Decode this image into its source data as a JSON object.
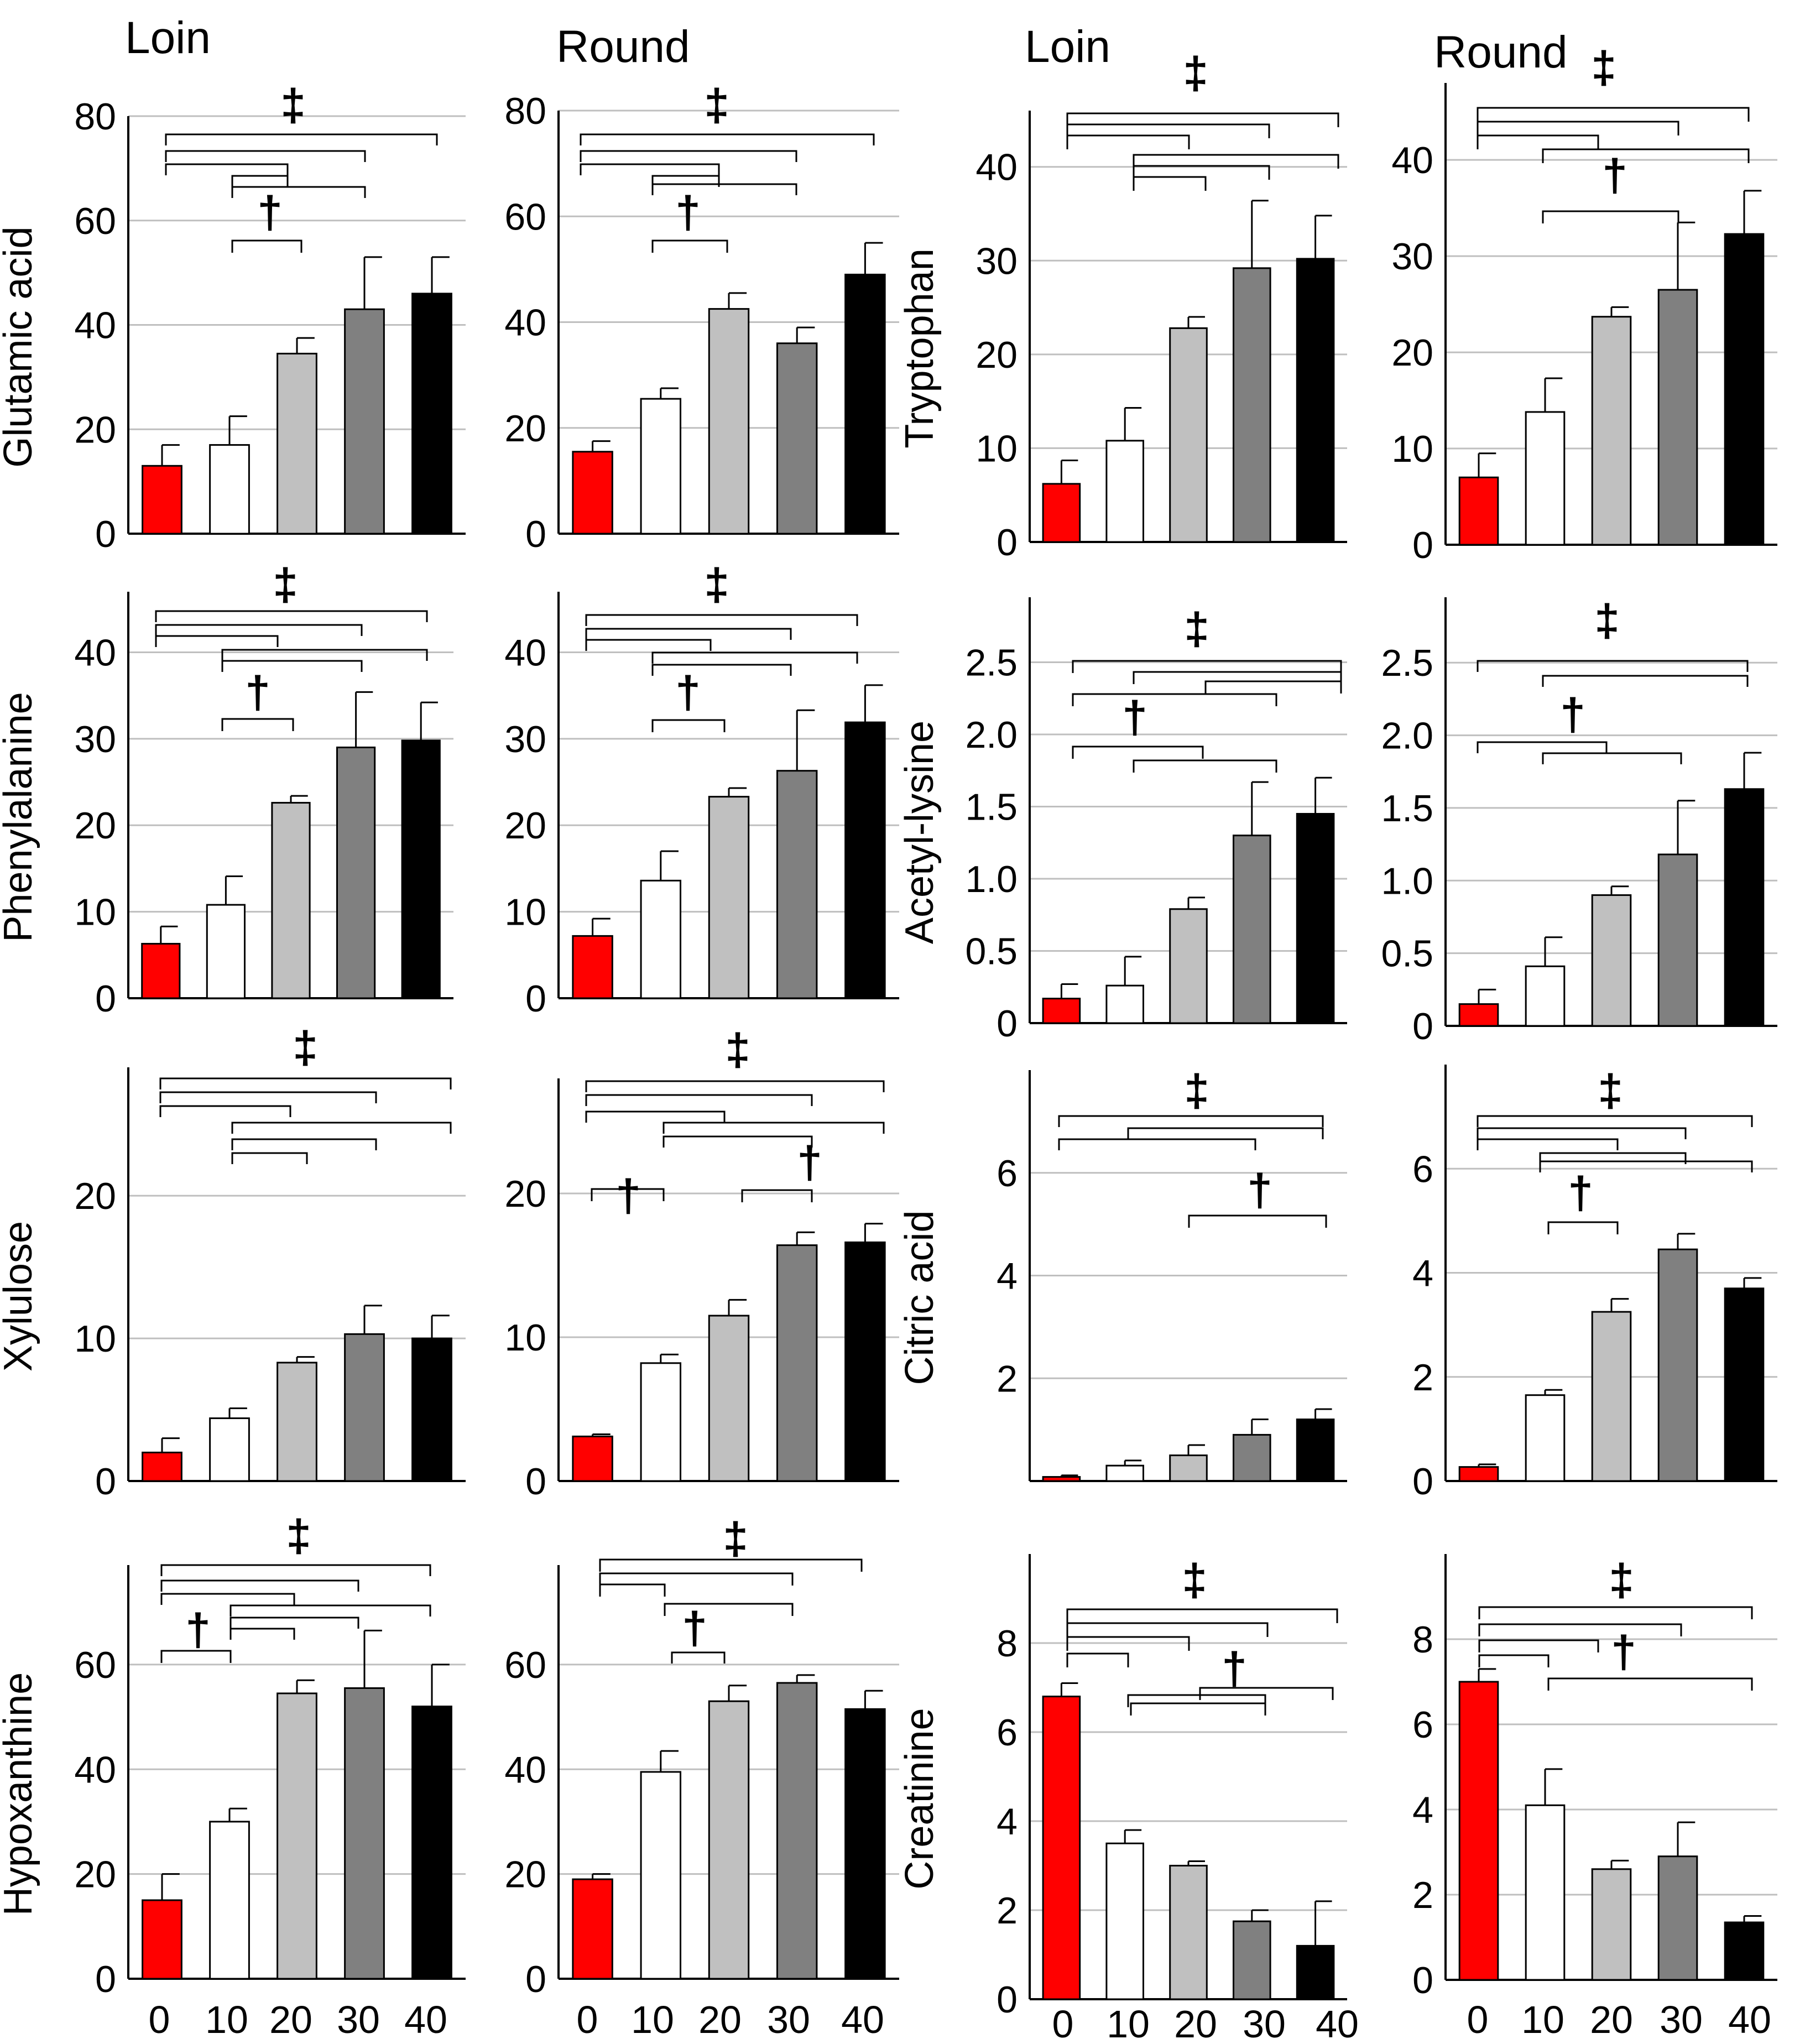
{
  "figure": {
    "column_titles": [
      "Loin",
      "Round",
      "Loin",
      "Round"
    ],
    "x_categories": [
      "0",
      "10",
      "20",
      "30",
      "40"
    ],
    "dagger_symbol": "†",
    "double_dagger_symbol": "‡"
  },
  "colors": {
    "bar_0": "#ff0000",
    "bar_10": "#ffffff",
    "bar_20": "#c0c0c0",
    "bar_30": "#808080",
    "bar_40": "#000000",
    "grid": "#bfbfbf",
    "axis": "#000000"
  },
  "chart_data": [
    {
      "type": "bar",
      "metabolite": "Glutamic acid",
      "cut": "Loin",
      "ylabel": "Glutamic acid",
      "categories": [
        "0",
        "10",
        "20",
        "30",
        "40"
      ],
      "values": [
        13,
        17,
        34.5,
        43,
        46
      ],
      "errors": [
        4,
        5.5,
        3,
        10,
        7
      ],
      "ylim": [
        0,
        80
      ],
      "yticks": [
        "0",
        "20",
        "40",
        "60",
        "80"
      ],
      "ytick_values": [
        0,
        20,
        40,
        60,
        80
      ],
      "grid": true
    },
    {
      "type": "bar",
      "metabolite": "Glutamic acid",
      "cut": "Round",
      "ylabel": "",
      "categories": [
        "0",
        "10",
        "20",
        "30",
        "40"
      ],
      "values": [
        15.5,
        25.5,
        42.5,
        36,
        49
      ],
      "errors": [
        2,
        2,
        3,
        3,
        6
      ],
      "ylim": [
        0,
        80
      ],
      "yticks": [
        "0",
        "20",
        "40",
        "60",
        "80"
      ],
      "ytick_values": [
        0,
        20,
        40,
        60,
        80
      ],
      "grid": true
    },
    {
      "type": "bar",
      "metabolite": "Tryptophan",
      "cut": "Loin",
      "ylabel": "Tryptophan",
      "categories": [
        "0",
        "10",
        "20",
        "30",
        "40"
      ],
      "values": [
        6.2,
        10.8,
        22.8,
        29.2,
        30.2
      ],
      "errors": [
        2.5,
        3.5,
        1.2,
        7.2,
        4.6
      ],
      "ylim": [
        0,
        46
      ],
      "yticks": [
        "0",
        "10",
        "20",
        "30",
        "40"
      ],
      "ytick_values": [
        0,
        10,
        20,
        30,
        40
      ],
      "grid": true
    },
    {
      "type": "bar",
      "metabolite": "Tryptophan",
      "cut": "Round",
      "ylabel": "",
      "categories": [
        "0",
        "10",
        "20",
        "30",
        "40"
      ],
      "values": [
        7,
        13.8,
        23.7,
        26.5,
        32.3
      ],
      "errors": [
        2.5,
        3.5,
        1,
        7,
        4.5
      ],
      "ylim": [
        0,
        48
      ],
      "yticks": [
        "0",
        "10",
        "20",
        "30",
        "40"
      ],
      "ytick_values": [
        0,
        10,
        20,
        30,
        40
      ],
      "grid": true
    },
    {
      "type": "bar",
      "metabolite": "Phenylalanine",
      "cut": "Loin",
      "ylabel": "Phenylalanine",
      "categories": [
        "0",
        "10",
        "20",
        "30",
        "40"
      ],
      "values": [
        6.3,
        10.8,
        22.6,
        29,
        29.8
      ],
      "errors": [
        2,
        3.3,
        0.8,
        6.4,
        4.4
      ],
      "ylim": [
        0,
        47
      ],
      "yticks": [
        "0",
        "10",
        "20",
        "30",
        "40"
      ],
      "ytick_values": [
        0,
        10,
        20,
        30,
        40
      ],
      "grid": true
    },
    {
      "type": "bar",
      "metabolite": "Phenylalanine",
      "cut": "Round",
      "ylabel": "",
      "categories": [
        "0",
        "10",
        "20",
        "30",
        "40"
      ],
      "values": [
        7.2,
        13.6,
        23.3,
        26.3,
        31.9
      ],
      "errors": [
        2,
        3.4,
        1,
        7,
        4.3
      ],
      "ylim": [
        0,
        47
      ],
      "yticks": [
        "0",
        "10",
        "20",
        "30",
        "40"
      ],
      "ytick_values": [
        0,
        10,
        20,
        30,
        40
      ],
      "grid": true
    },
    {
      "type": "bar",
      "metabolite": "Acetyl-lysine",
      "cut": "Loin",
      "ylabel": "Acetyl-lysine",
      "categories": [
        "0",
        "10",
        "20",
        "30",
        "40"
      ],
      "values": [
        0.17,
        0.26,
        0.79,
        1.3,
        1.45
      ],
      "errors": [
        0.1,
        0.2,
        0.08,
        0.37,
        0.25
      ],
      "ylim": [
        0,
        2.95
      ],
      "yticks": [
        "0",
        "0.5",
        "1.0",
        "1.5",
        "2.0",
        "2.5"
      ],
      "ytick_values": [
        0,
        0.5,
        1,
        1.5,
        2,
        2.5
      ],
      "grid": true
    },
    {
      "type": "bar",
      "metabolite": "Acetyl-lysine",
      "cut": "Round",
      "ylabel": "",
      "categories": [
        "0",
        "10",
        "20",
        "30",
        "40"
      ],
      "values": [
        0.15,
        0.41,
        0.9,
        1.18,
        1.63
      ],
      "errors": [
        0.1,
        0.2,
        0.06,
        0.37,
        0.25
      ],
      "ylim": [
        0,
        2.95
      ],
      "yticks": [
        "0",
        "0.5",
        "1.0",
        "1.5",
        "2.0",
        "2.5"
      ],
      "ytick_values": [
        0,
        0.5,
        1,
        1.5,
        2,
        2.5
      ],
      "grid": true
    },
    {
      "type": "bar",
      "metabolite": "Xylulose",
      "cut": "Loin",
      "ylabel": "Xylulose",
      "categories": [
        "0",
        "10",
        "20",
        "30",
        "40"
      ],
      "values": [
        2,
        4.4,
        8.3,
        10.3,
        10
      ],
      "errors": [
        1,
        0.7,
        0.4,
        2,
        1.6
      ],
      "ylim": [
        0,
        29
      ],
      "yticks": [
        "0",
        "10",
        "20"
      ],
      "ytick_values": [
        0,
        10,
        20
      ],
      "grid": true
    },
    {
      "type": "bar",
      "metabolite": "Xylulose",
      "cut": "Round",
      "ylabel": "",
      "categories": [
        "0",
        "10",
        "20",
        "30",
        "40"
      ],
      "values": [
        3.1,
        8.2,
        11.5,
        16.4,
        16.6
      ],
      "errors": [
        0.15,
        0.6,
        1.1,
        0.9,
        1.3
      ],
      "ylim": [
        0,
        28
      ],
      "yticks": [
        "0",
        "10",
        "20"
      ],
      "ytick_values": [
        0,
        10,
        20
      ],
      "grid": true
    },
    {
      "type": "bar",
      "metabolite": "Citric acid",
      "cut": "Loin",
      "ylabel": "Citric acid",
      "categories": [
        "0",
        "10",
        "20",
        "30",
        "40"
      ],
      "values": [
        0.08,
        0.3,
        0.5,
        0.9,
        1.2
      ],
      "errors": [
        0.03,
        0.1,
        0.2,
        0.3,
        0.2
      ],
      "ylim": [
        0,
        8
      ],
      "yticks": [
        "2",
        "4",
        "6"
      ],
      "ytick_values": [
        2,
        4,
        6
      ],
      "grid": true
    },
    {
      "type": "bar",
      "metabolite": "Citric acid",
      "cut": "Round",
      "ylabel": "",
      "categories": [
        "0",
        "10",
        "20",
        "30",
        "40"
      ],
      "values": [
        0.27,
        1.65,
        3.25,
        4.45,
        3.7
      ],
      "errors": [
        0.05,
        0.1,
        0.25,
        0.3,
        0.2
      ],
      "ylim": [
        0,
        8
      ],
      "yticks": [
        "0",
        "2",
        "4",
        "6"
      ],
      "ytick_values": [
        0,
        2,
        4,
        6
      ],
      "grid": true
    },
    {
      "type": "bar",
      "metabolite": "Hypoxanthine",
      "cut": "Loin",
      "ylabel": "Hypoxanthine",
      "categories": [
        "0",
        "10",
        "20",
        "30",
        "40"
      ],
      "values": [
        15,
        30,
        54.5,
        55.5,
        52
      ],
      "errors": [
        5,
        2.5,
        2.5,
        11,
        8
      ],
      "ylim": [
        0,
        79
      ],
      "yticks": [
        "0",
        "20",
        "40",
        "60"
      ],
      "ytick_values": [
        0,
        20,
        40,
        60
      ],
      "grid": true
    },
    {
      "type": "bar",
      "metabolite": "Hypoxanthine",
      "cut": "Round",
      "ylabel": "",
      "categories": [
        "0",
        "10",
        "20",
        "30",
        "40"
      ],
      "values": [
        19,
        39.5,
        53,
        56.5,
        51.5
      ],
      "errors": [
        1,
        4,
        3,
        1.5,
        3.5
      ],
      "ylim": [
        0,
        79
      ],
      "yticks": [
        "0",
        "20",
        "40",
        "60"
      ],
      "ytick_values": [
        0,
        20,
        40,
        60
      ],
      "grid": true
    },
    {
      "type": "bar",
      "metabolite": "Creatinine",
      "cut": "Loin",
      "ylabel": "Creatinine",
      "categories": [
        "0",
        "10",
        "20",
        "30",
        "40"
      ],
      "values": [
        6.8,
        3.5,
        3,
        1.75,
        1.2
      ],
      "errors": [
        0.3,
        0.3,
        0.1,
        0.25,
        1
      ],
      "ylim": [
        0,
        10
      ],
      "yticks": [
        "0",
        "2",
        "4",
        "6",
        "8"
      ],
      "ytick_values": [
        0,
        2,
        4,
        6,
        8
      ],
      "grid": true
    },
    {
      "type": "bar",
      "metabolite": "Creatinine",
      "cut": "Round",
      "ylabel": "",
      "categories": [
        "0",
        "10",
        "20",
        "30",
        "40"
      ],
      "values": [
        7,
        4.1,
        2.6,
        2.9,
        1.35
      ],
      "errors": [
        0.3,
        0.85,
        0.2,
        0.8,
        0.15
      ],
      "ylim": [
        0,
        10
      ],
      "yticks": [
        "0",
        "2",
        "4",
        "6",
        "8"
      ],
      "ytick_values": [
        0,
        2,
        4,
        6,
        8
      ],
      "grid": true
    }
  ]
}
